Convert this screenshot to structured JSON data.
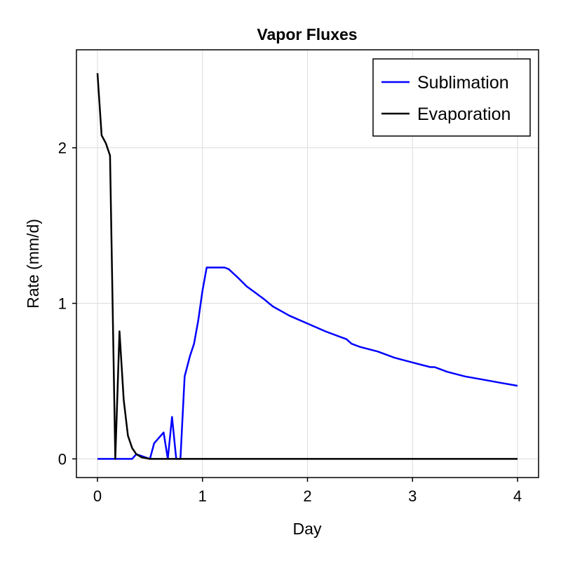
{
  "chart_data": {
    "type": "line",
    "title": "Vapor Fluxes",
    "xlabel": "Day",
    "ylabel": "Rate (mm/d)",
    "xlim": [
      -0.2,
      4.2
    ],
    "ylim": [
      -0.12,
      2.63
    ],
    "xticks": [
      0,
      1,
      2,
      3,
      4
    ],
    "yticks": [
      0,
      1,
      2
    ],
    "grid": true,
    "legend_position": "top-right",
    "series": [
      {
        "name": "Sublimation",
        "color": "#0000ff",
        "x": [
          0,
          0.17,
          0.33,
          0.37,
          0.5,
          0.54,
          0.63,
          0.67,
          0.71,
          0.75,
          0.79,
          0.83,
          0.88,
          0.92,
          0.96,
          1.0,
          1.04,
          1.08,
          1.17,
          1.21,
          1.25,
          1.33,
          1.42,
          1.5,
          1.54,
          1.58,
          1.67,
          1.75,
          1.83,
          2.0,
          2.17,
          2.33,
          2.37,
          2.42,
          2.5,
          2.67,
          2.83,
          3.0,
          3.17,
          3.21,
          3.25,
          3.33,
          3.5,
          3.67,
          3.83,
          4.0
        ],
        "y": [
          0,
          0,
          0,
          0.03,
          0,
          0.1,
          0.17,
          0,
          0.27,
          0,
          0,
          0.53,
          0.66,
          0.74,
          0.89,
          1.08,
          1.23,
          1.23,
          1.23,
          1.23,
          1.22,
          1.17,
          1.11,
          1.07,
          1.05,
          1.03,
          0.98,
          0.95,
          0.92,
          0.87,
          0.82,
          0.78,
          0.77,
          0.74,
          0.72,
          0.69,
          0.65,
          0.62,
          0.59,
          0.59,
          0.58,
          0.56,
          0.53,
          0.51,
          0.49,
          0.47
        ]
      },
      {
        "name": "Evaporation",
        "color": "#000000",
        "x": [
          0,
          0.04,
          0.08,
          0.12,
          0.17,
          0.21,
          0.25,
          0.29,
          0.33,
          0.37,
          0.42,
          0.5,
          1.0,
          2.0,
          3.0,
          4.0
        ],
        "y": [
          2.48,
          2.08,
          2.03,
          1.95,
          0,
          0.82,
          0.38,
          0.15,
          0.07,
          0.03,
          0.01,
          0,
          0,
          0,
          0,
          0
        ]
      }
    ]
  }
}
